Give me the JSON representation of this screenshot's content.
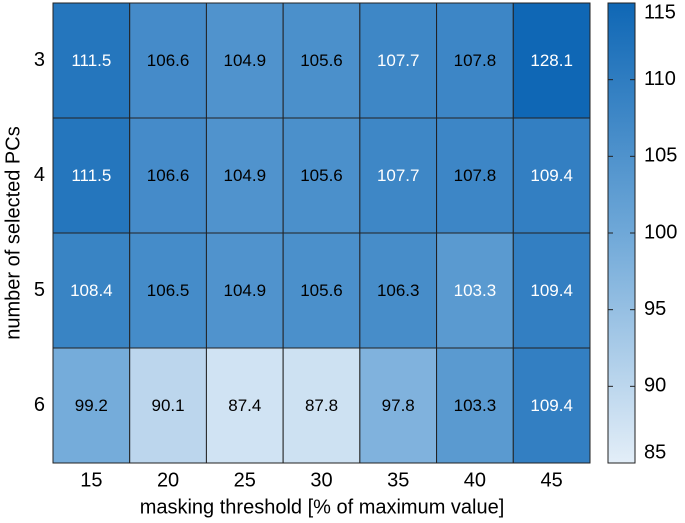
{
  "chart_data": {
    "type": "heatmap",
    "xlabel": "masking threshold [% of maximum value]",
    "ylabel": "number of selected PCs",
    "x": [
      15,
      20,
      25,
      30,
      35,
      40,
      45
    ],
    "y": [
      3,
      4,
      5,
      6
    ],
    "values": [
      [
        111.5,
        106.6,
        104.9,
        105.6,
        107.7,
        107.8,
        128.1
      ],
      [
        111.5,
        106.6,
        104.9,
        105.6,
        107.7,
        107.8,
        109.4
      ],
      [
        108.4,
        106.5,
        104.9,
        105.6,
        106.3,
        103.3,
        109.4
      ],
      [
        99.2,
        90.1,
        87.4,
        87.8,
        97.8,
        103.3,
        109.4
      ]
    ],
    "label_colors": [
      [
        "#ffffff",
        "#000000",
        "#000000",
        "#000000",
        "#ffffff",
        "#000000",
        "#ffffff"
      ],
      [
        "#ffffff",
        "#000000",
        "#000000",
        "#000000",
        "#ffffff",
        "#000000",
        "#ffffff"
      ],
      [
        "#ffffff",
        "#000000",
        "#000000",
        "#000000",
        "#000000",
        "#ffffff",
        "#ffffff"
      ],
      [
        "#000000",
        "#000000",
        "#000000",
        "#000000",
        "#000000",
        "#000000",
        "#ffffff"
      ]
    ],
    "colormap": [
      "#e3eef8",
      "#6fa8d8",
      "#0f67b5"
    ],
    "clim": [
      85,
      115
    ],
    "cticks": [
      85,
      90,
      95,
      100,
      105,
      110,
      115
    ]
  }
}
